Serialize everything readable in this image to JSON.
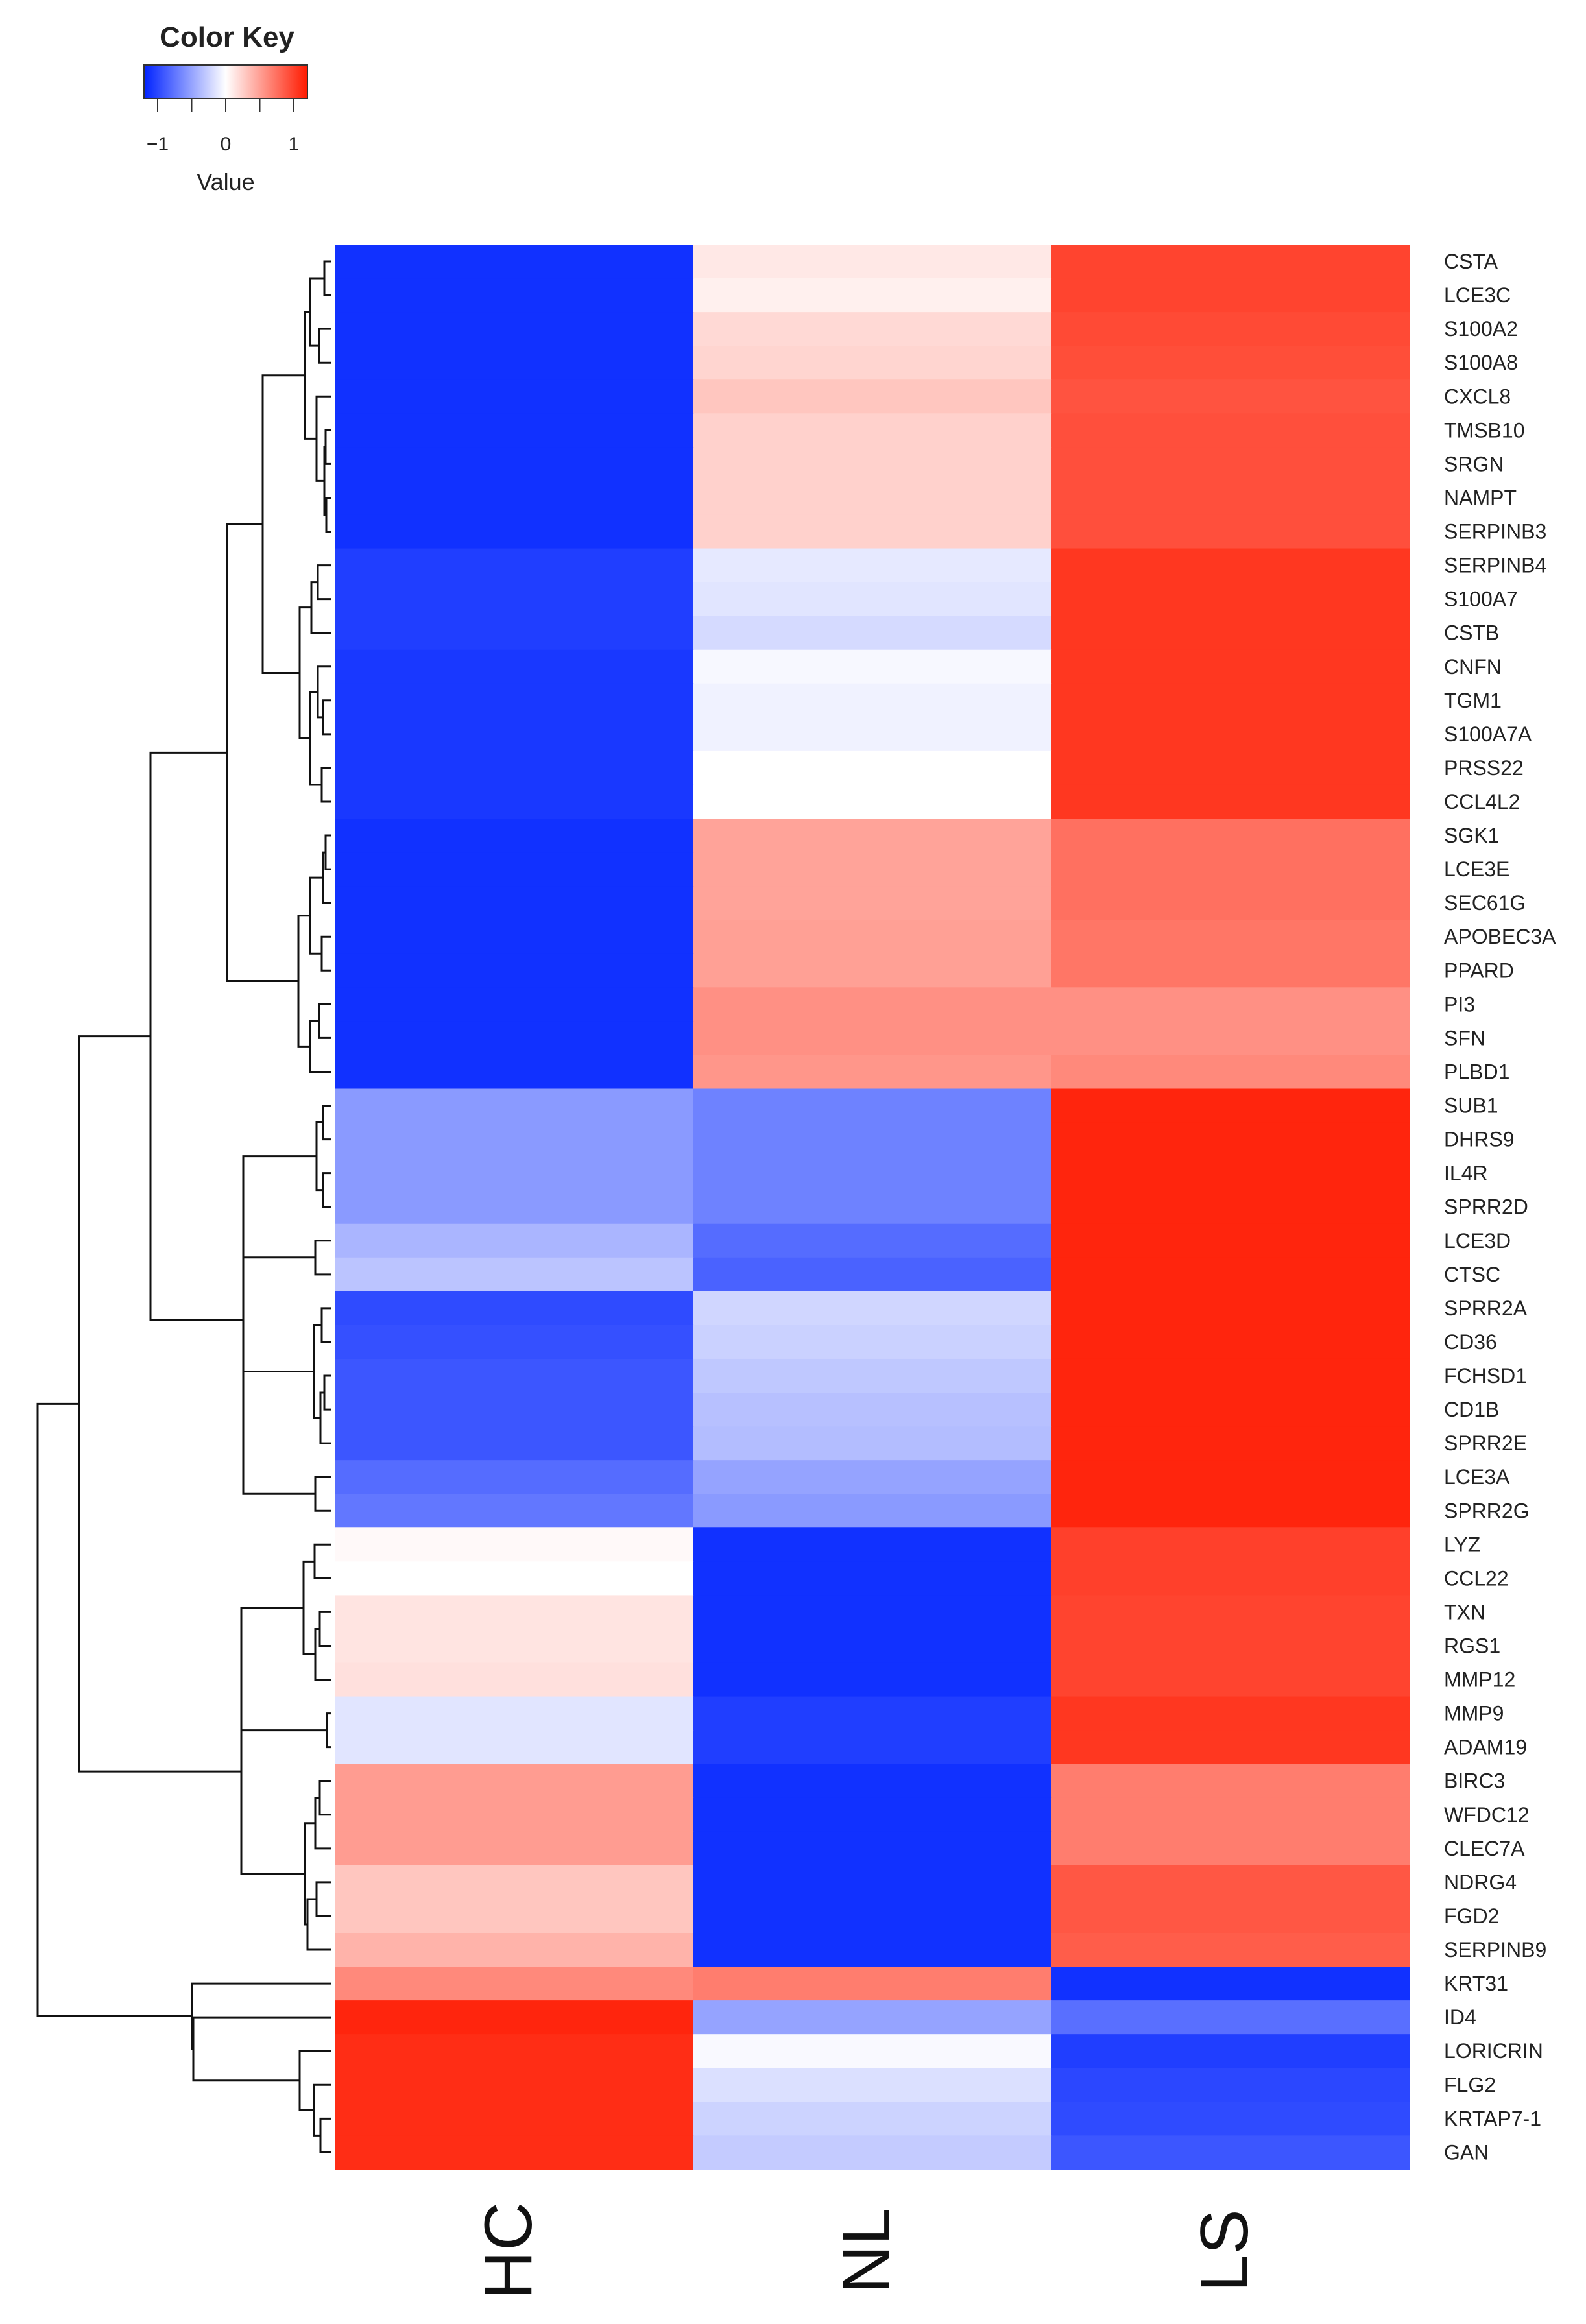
{
  "chart_data": {
    "type": "heatmap",
    "color_key": {
      "title": "Color Key",
      "axis_label": "Value",
      "ticks": [
        -1,
        0,
        1
      ],
      "tick_labels": [
        "−1",
        "0",
        "1"
      ],
      "range": [
        -1.2,
        1.2
      ],
      "colors": {
        "low": "#0022ff",
        "mid": "#ffffff",
        "high": "#ff1a00"
      }
    },
    "columns": [
      "HC",
      "NL",
      "LS"
    ],
    "rows": [
      "CSTA",
      "LCE3C",
      "S100A2",
      "S100A8",
      "CXCL8",
      "TMSB10",
      "SRGN",
      "NAMPT",
      "SERPINB3",
      "SERPINB4",
      "S100A7",
      "CSTB",
      "CNFN",
      "TGM1",
      "S100A7A",
      "PRSS22",
      "CCL4L2",
      "SGK1",
      "LCE3E",
      "SEC61G",
      "APOBEC3A",
      "PPARD",
      "PI3",
      "SFN",
      "PLBD1",
      "SUB1",
      "DHRS9",
      "IL4R",
      "SPRR2D",
      "LCE3D",
      "CTSC",
      "SPRR2A",
      "CD36",
      "FCHSD1",
      "CD1B",
      "SPRR2E",
      "LCE3A",
      "SPRR2G",
      "LYZ",
      "CCL22",
      "TXN",
      "RGS1",
      "MMP12",
      "MMP9",
      "ADAM19",
      "BIRC3",
      "WFDC12",
      "CLEC7A",
      "NDRG4",
      "FGD2",
      "SERPINB9",
      "KRT31",
      "ID4",
      "LORICRIN",
      "FLG2",
      "KRTAP7-1",
      "GAN"
    ],
    "values": [
      [
        -1.12,
        0.12,
        0.98
      ],
      [
        -1.12,
        0.08,
        0.98
      ],
      [
        -1.12,
        0.2,
        0.95
      ],
      [
        -1.12,
        0.22,
        0.93
      ],
      [
        -1.12,
        0.3,
        0.9
      ],
      [
        -1.12,
        0.24,
        0.92
      ],
      [
        -1.12,
        0.24,
        0.92
      ],
      [
        -1.12,
        0.24,
        0.92
      ],
      [
        -1.12,
        0.24,
        0.92
      ],
      [
        -1.05,
        -0.12,
        1.05
      ],
      [
        -1.05,
        -0.14,
        1.05
      ],
      [
        -1.05,
        -0.2,
        1.05
      ],
      [
        -1.08,
        -0.04,
        1.05
      ],
      [
        -1.08,
        -0.07,
        1.05
      ],
      [
        -1.08,
        -0.07,
        1.05
      ],
      [
        -1.08,
        0.0,
        1.05
      ],
      [
        -1.08,
        0.0,
        1.05
      ],
      [
        -1.12,
        0.48,
        0.75
      ],
      [
        -1.12,
        0.48,
        0.75
      ],
      [
        -1.12,
        0.48,
        0.75
      ],
      [
        -1.12,
        0.5,
        0.72
      ],
      [
        -1.12,
        0.5,
        0.72
      ],
      [
        -1.12,
        0.58,
        0.58
      ],
      [
        -1.12,
        0.58,
        0.58
      ],
      [
        -1.12,
        0.55,
        0.62
      ],
      [
        -0.55,
        -0.68,
        1.14
      ],
      [
        -0.55,
        -0.68,
        1.14
      ],
      [
        -0.55,
        -0.68,
        1.14
      ],
      [
        -0.55,
        -0.68,
        1.14
      ],
      [
        -0.4,
        -0.8,
        1.14
      ],
      [
        -0.32,
        -0.85,
        1.14
      ],
      [
        -0.98,
        -0.22,
        1.14
      ],
      [
        -0.95,
        -0.25,
        1.14
      ],
      [
        -0.92,
        -0.3,
        1.14
      ],
      [
        -0.92,
        -0.34,
        1.14
      ],
      [
        -0.92,
        -0.36,
        1.14
      ],
      [
        -0.8,
        -0.5,
        1.14
      ],
      [
        -0.74,
        -0.55,
        1.14
      ],
      [
        0.03,
        -1.12,
        1.0
      ],
      [
        0.0,
        -1.12,
        1.0
      ],
      [
        0.14,
        -1.12,
        0.98
      ],
      [
        0.14,
        -1.12,
        0.98
      ],
      [
        0.16,
        -1.12,
        0.98
      ],
      [
        -0.14,
        -1.05,
        1.05
      ],
      [
        -0.14,
        -1.05,
        1.05
      ],
      [
        0.52,
        -1.12,
        0.68
      ],
      [
        0.52,
        -1.12,
        0.68
      ],
      [
        0.52,
        -1.12,
        0.68
      ],
      [
        0.3,
        -1.12,
        0.88
      ],
      [
        0.3,
        -1.12,
        0.88
      ],
      [
        0.4,
        -1.12,
        0.85
      ],
      [
        0.62,
        0.68,
        -1.12
      ],
      [
        1.14,
        -0.5,
        -0.78
      ],
      [
        1.1,
        -0.03,
        -1.05
      ],
      [
        1.1,
        -0.17,
        -1.0
      ],
      [
        1.1,
        -0.24,
        -0.98
      ],
      [
        1.1,
        -0.28,
        -0.92
      ]
    ]
  }
}
